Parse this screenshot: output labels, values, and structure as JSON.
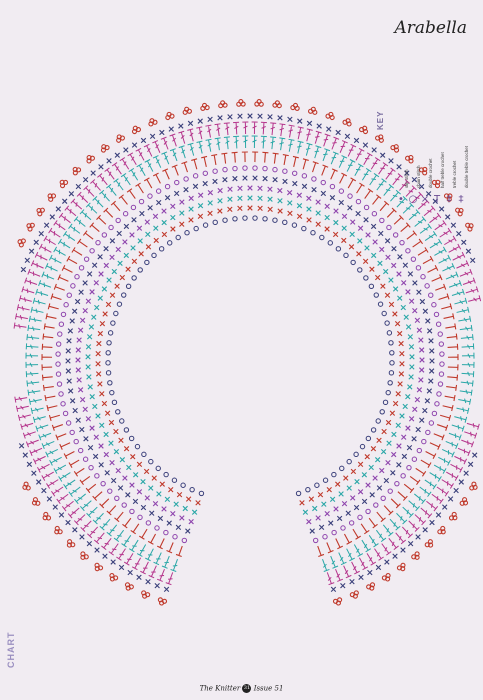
{
  "title": "Arabella",
  "chart_label": "CHART",
  "key": {
    "title": "KEY",
    "items": [
      {
        "symbol": "•",
        "label": "slip stitch",
        "icon": "dot-icon"
      },
      {
        "symbol": "○",
        "label": "chain stitch",
        "icon": "circle-icon"
      },
      {
        "symbol": "×",
        "label": "double crochet",
        "icon": "cross-icon"
      },
      {
        "symbol": "T",
        "label": "half treble crochet",
        "icon": "t-icon"
      },
      {
        "symbol": "‡",
        "label": "treble crochet",
        "icon": "treble-icon"
      },
      {
        "symbol": "‡",
        "label": "double treble crochet",
        "icon": "double-treble-icon"
      }
    ]
  },
  "footer": {
    "magazine": "The Knitter",
    "page": "31",
    "issue": "Issue 51"
  },
  "colors": {
    "red": "#c0392b",
    "purple": "#8e44ad",
    "teal": "#2aa7a7",
    "magenta": "#b5358c",
    "navy": "#3a3f7a"
  }
}
